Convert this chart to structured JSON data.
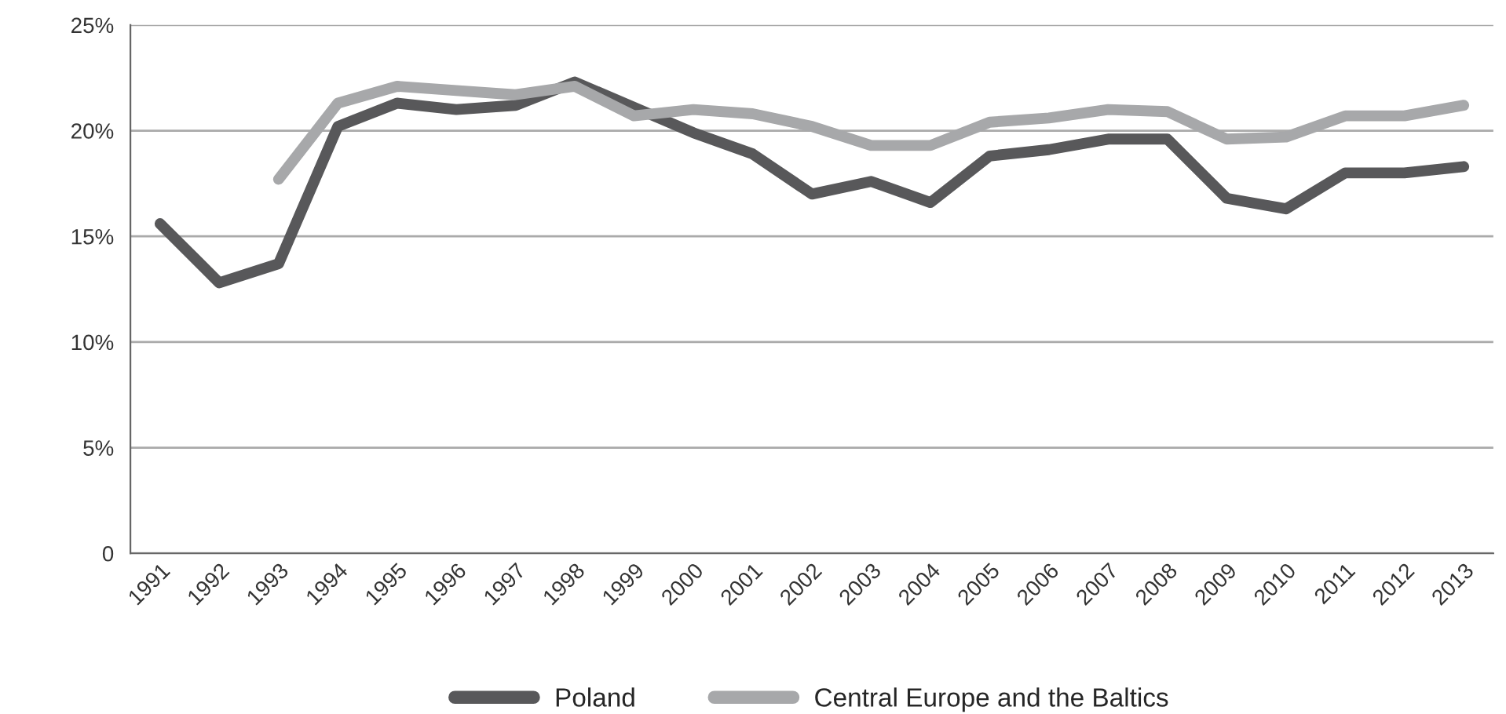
{
  "chart_data": {
    "type": "line",
    "categories": [
      "1991",
      "1992",
      "1993",
      "1994",
      "1995",
      "1996",
      "1997",
      "1998",
      "1999",
      "2000",
      "2001",
      "2002",
      "2003",
      "2004",
      "2005",
      "2006",
      "2007",
      "2008",
      "2009",
      "2010",
      "2011",
      "2012",
      "2013"
    ],
    "series": [
      {
        "name": "Poland",
        "color": "#58585a",
        "values": [
          15.6,
          12.8,
          13.7,
          20.2,
          21.3,
          21.0,
          21.2,
          22.3,
          21.1,
          19.9,
          18.9,
          17.0,
          17.6,
          16.6,
          18.8,
          19.1,
          19.6,
          19.6,
          16.8,
          16.3,
          18.0,
          18.0,
          18.3
        ]
      },
      {
        "name": "Central Europe and the Baltics",
        "color": "#a7a8aa",
        "values": [
          null,
          null,
          17.7,
          21.3,
          22.1,
          21.9,
          21.7,
          22.1,
          20.7,
          21.0,
          20.8,
          20.2,
          19.3,
          19.3,
          20.4,
          20.6,
          21.0,
          20.9,
          19.6,
          19.7,
          20.7,
          20.7,
          21.2
        ]
      }
    ],
    "ylim": [
      0,
      25
    ],
    "yticks": [
      {
        "value": 0,
        "label": "0"
      },
      {
        "value": 5,
        "label": "5%"
      },
      {
        "value": 10,
        "label": "10%"
      },
      {
        "value": 15,
        "label": "15%"
      },
      {
        "value": 20,
        "label": "20%"
      },
      {
        "value": 25,
        "label": "25%"
      }
    ],
    "grid": "y",
    "legend": "bottom",
    "marker": "none",
    "line_style": "solid"
  }
}
